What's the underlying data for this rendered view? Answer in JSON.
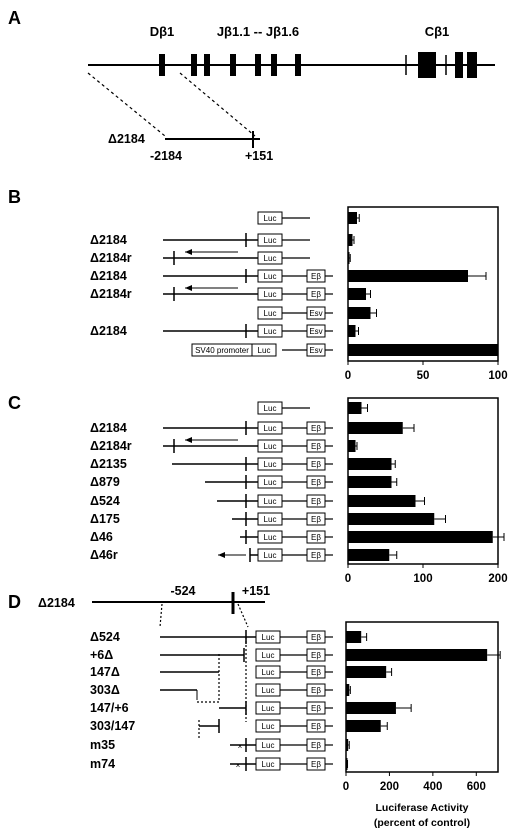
{
  "panels": {
    "A": "A",
    "B": "B",
    "C": "C",
    "D": "D"
  },
  "panelA": {
    "gene_labels": [
      "Dβ1",
      "Jβ1.1 -- Jβ1.6",
      "Cβ1"
    ],
    "construct_name": "Δ2184",
    "left_pos": "-2184",
    "right_pos": "+151"
  },
  "box_labels": {
    "luc": "Luc",
    "eb": "Eβ",
    "esv": "Esv",
    "sv40": "SV40 promoter"
  },
  "panelB": {
    "rows": [
      "",
      "Δ2184",
      "Δ2184r",
      "Δ2184",
      "Δ2184r",
      "",
      "Δ2184",
      ""
    ]
  },
  "panelC": {
    "rows": [
      "",
      "Δ2184",
      "Δ2184r",
      "Δ2135",
      "Δ879",
      "Δ524",
      "Δ175",
      "Δ46",
      "Δ46r"
    ]
  },
  "panelD": {
    "header_name": "Δ2184",
    "header_left": "-524",
    "header_right": "+151",
    "rows": [
      "Δ524",
      "+6Δ",
      "147Δ",
      "303Δ",
      "147/+6",
      "303/147",
      "m35",
      "m74"
    ]
  },
  "axis_title": [
    "Luciferase Activity",
    "(percent of control)"
  ],
  "chart_data": [
    {
      "type": "bar",
      "orientation": "horizontal",
      "panel": "B",
      "categories": [
        "Luc",
        "Δ2184 Luc",
        "Δ2184r Luc",
        "Δ2184 Luc Eβ",
        "Δ2184r Luc Eβ",
        "Luc Esv",
        "Δ2184 Luc Esv",
        "SV40 promoter Luc Esv"
      ],
      "values": [
        6,
        3,
        1,
        80,
        12,
        15,
        5,
        100
      ],
      "errors": [
        1.5,
        1,
        0.5,
        12,
        3,
        4,
        2,
        0
      ],
      "xlim": [
        0,
        100
      ],
      "ticks": [
        0,
        50,
        100
      ]
    },
    {
      "type": "bar",
      "orientation": "horizontal",
      "panel": "C",
      "categories": [
        "Luc",
        "Δ2184",
        "Δ2184r",
        "Δ2135",
        "Δ879",
        "Δ524",
        "Δ175",
        "Δ46",
        "Δ46r"
      ],
      "values": [
        18,
        73,
        10,
        58,
        58,
        90,
        115,
        193,
        55
      ],
      "errors": [
        8,
        15,
        2,
        5,
        7,
        12,
        15,
        15,
        10
      ],
      "xlim": [
        0,
        200
      ],
      "ticks": [
        0,
        100,
        200
      ]
    },
    {
      "type": "bar",
      "orientation": "horizontal",
      "panel": "D",
      "categories": [
        "Δ524",
        "+6Δ",
        "147Δ",
        "303Δ",
        "147/+6",
        "303/147",
        "m35",
        "m74"
      ],
      "values": [
        70,
        650,
        185,
        15,
        230,
        160,
        10,
        5
      ],
      "errors": [
        25,
        60,
        25,
        5,
        70,
        30,
        5,
        2
      ],
      "xlim": [
        0,
        700
      ],
      "ticks": [
        0,
        200,
        400,
        600
      ]
    }
  ]
}
